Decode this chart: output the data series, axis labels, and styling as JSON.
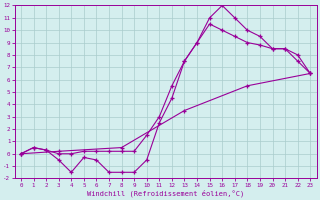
{
  "line1_x": [
    0,
    1,
    2,
    3,
    4,
    5,
    6,
    7,
    8,
    9,
    10,
    11,
    12,
    13,
    14,
    15,
    16,
    17,
    18,
    19,
    20,
    21,
    22,
    23
  ],
  "line1_y": [
    0.0,
    0.5,
    0.3,
    -0.5,
    -1.5,
    -0.3,
    -0.5,
    -1.5,
    -1.5,
    -1.5,
    -0.5,
    2.5,
    4.5,
    7.5,
    9.0,
    11.0,
    12.0,
    11.0,
    10.0,
    9.5,
    8.5,
    8.5,
    7.5,
    6.5
  ],
  "line2_x": [
    0,
    1,
    2,
    3,
    4,
    5,
    6,
    7,
    8,
    9,
    10,
    11,
    12,
    13,
    14,
    15,
    16,
    17,
    18,
    19,
    20,
    21,
    22,
    23
  ],
  "line2_y": [
    0.0,
    0.5,
    0.3,
    0.0,
    0.0,
    0.2,
    0.2,
    0.2,
    0.2,
    0.2,
    1.5,
    3.0,
    5.5,
    7.5,
    9.0,
    10.5,
    10.0,
    9.5,
    9.0,
    8.8,
    8.5,
    8.5,
    8.0,
    6.5
  ],
  "line3_x": [
    0,
    3,
    8,
    13,
    18,
    23
  ],
  "line3_y": [
    0.0,
    0.2,
    0.5,
    3.5,
    5.5,
    6.5
  ],
  "color": "#990099",
  "bg_color": "#d4eeee",
  "grid_color": "#aacccc",
  "xlabel": "Windchill (Refroidissement éolien,°C)",
  "xlim": [
    -0.5,
    23.5
  ],
  "ylim": [
    -2,
    12
  ],
  "xticks": [
    0,
    1,
    2,
    3,
    4,
    5,
    6,
    7,
    8,
    9,
    10,
    11,
    12,
    13,
    14,
    15,
    16,
    17,
    18,
    19,
    20,
    21,
    22,
    23
  ],
  "yticks": [
    -2,
    -1,
    0,
    1,
    2,
    3,
    4,
    5,
    6,
    7,
    8,
    9,
    10,
    11,
    12
  ],
  "marker": "+"
}
